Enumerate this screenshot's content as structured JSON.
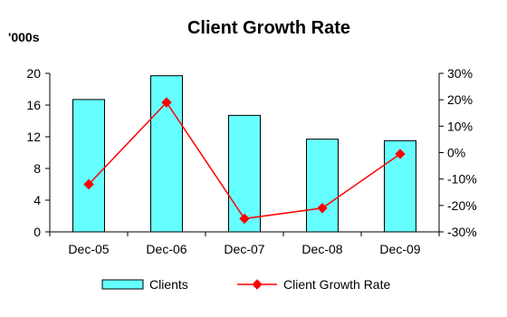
{
  "chart_data": {
    "type": "bar",
    "title": "Client Growth Rate",
    "y_unit_label": "'000s",
    "categories": [
      "Dec-05",
      "Dec-06",
      "Dec-07",
      "Dec-08",
      "Dec-09"
    ],
    "series": [
      {
        "name": "Clients",
        "type": "bar",
        "axis": "left",
        "values": [
          16.7,
          19.7,
          14.7,
          11.7,
          11.5
        ],
        "color": "#66FFFF"
      },
      {
        "name": "Client Growth Rate",
        "type": "line",
        "axis": "right",
        "marker": "diamond",
        "values": [
          -12,
          19,
          -25,
          -21,
          -0.5
        ],
        "color": "#FF0000"
      }
    ],
    "y_left": {
      "min": 0,
      "max": 20,
      "ticks": [
        0,
        4,
        8,
        12,
        16,
        20
      ],
      "tick_labels": [
        "0",
        "4",
        "8",
        "12",
        "16",
        "20"
      ]
    },
    "y_right": {
      "min": -30,
      "max": 30,
      "ticks": [
        -30,
        -20,
        -10,
        0,
        10,
        20,
        30
      ],
      "tick_labels": [
        "-30%",
        "-20%",
        "-10%",
        "0%",
        "10%",
        "20%",
        "30%"
      ]
    },
    "grid": false,
    "legend": "bottom"
  }
}
